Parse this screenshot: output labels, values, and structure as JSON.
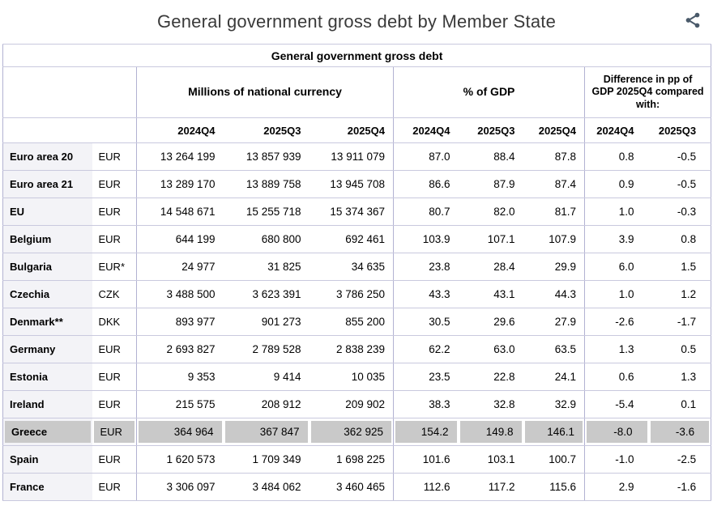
{
  "header": {
    "title": "General government gross debt by Member State"
  },
  "icons": {
    "share": "share-icon"
  },
  "colors": {
    "table_border": "#b2b2d2",
    "row_line": "#c9c9de",
    "name_column_bg": "#f3f3f7",
    "highlight_bg": "#c9c9c9",
    "title_text": "#3a3a3a",
    "share_icon": "#4a5a6a"
  },
  "chart_data": {
    "type": "table",
    "title": "General government gross debt",
    "column_groups": [
      {
        "label": "Millions of national currency",
        "span": 3
      },
      {
        "label": "% of GDP",
        "span": 3
      },
      {
        "label": "Difference in pp of GDP 2025Q4 compared with:",
        "span": 2
      }
    ],
    "quarter_columns": [
      "2024Q4",
      "2025Q3",
      "2025Q4",
      "2024Q4",
      "2025Q3",
      "2025Q4",
      "2024Q4",
      "2025Q3"
    ],
    "rows": [
      {
        "name": "Euro area 20",
        "currency": "EUR",
        "millions": [
          "13 264 199",
          "13 857 939",
          "13 911 079"
        ],
        "pct_of_gdp": [
          "87.0",
          "88.4",
          "87.8"
        ],
        "diff_pp": [
          "0.8",
          "-0.5"
        ],
        "highlighted": false
      },
      {
        "name": "Euro area 21",
        "currency": "EUR",
        "millions": [
          "13 289 170",
          "13 889 758",
          "13 945 708"
        ],
        "pct_of_gdp": [
          "86.6",
          "87.9",
          "87.4"
        ],
        "diff_pp": [
          "0.9",
          "-0.5"
        ],
        "highlighted": false
      },
      {
        "name": "EU",
        "currency": "EUR",
        "millions": [
          "14 548 671",
          "15 255 718",
          "15 374 367"
        ],
        "pct_of_gdp": [
          "80.7",
          "82.0",
          "81.7"
        ],
        "diff_pp": [
          "1.0",
          "-0.3"
        ],
        "highlighted": false
      },
      {
        "name": "Belgium",
        "currency": "EUR",
        "millions": [
          "644 199",
          "680 800",
          "692 461"
        ],
        "pct_of_gdp": [
          "103.9",
          "107.1",
          "107.9"
        ],
        "diff_pp": [
          "3.9",
          "0.8"
        ],
        "highlighted": false
      },
      {
        "name": "Bulgaria",
        "currency": "EUR*",
        "millions": [
          "24 977",
          "31 825",
          "34 635"
        ],
        "pct_of_gdp": [
          "23.8",
          "28.4",
          "29.9"
        ],
        "diff_pp": [
          "6.0",
          "1.5"
        ],
        "highlighted": false
      },
      {
        "name": "Czechia",
        "currency": "CZK",
        "millions": [
          "3 488 500",
          "3 623 391",
          "3 786 250"
        ],
        "pct_of_gdp": [
          "43.3",
          "43.1",
          "44.3"
        ],
        "diff_pp": [
          "1.0",
          "1.2"
        ],
        "highlighted": false
      },
      {
        "name": "Denmark**",
        "currency": "DKK",
        "millions": [
          "893 977",
          "901 273",
          "855 200"
        ],
        "pct_of_gdp": [
          "30.5",
          "29.6",
          "27.9"
        ],
        "diff_pp": [
          "-2.6",
          "-1.7"
        ],
        "highlighted": false
      },
      {
        "name": "Germany",
        "currency": "EUR",
        "millions": [
          "2 693 827",
          "2 789 528",
          "2 838 239"
        ],
        "pct_of_gdp": [
          "62.2",
          "63.0",
          "63.5"
        ],
        "diff_pp": [
          "1.3",
          "0.5"
        ],
        "highlighted": false
      },
      {
        "name": "Estonia",
        "currency": "EUR",
        "millions": [
          "9 353",
          "9 414",
          "10 035"
        ],
        "pct_of_gdp": [
          "23.5",
          "22.8",
          "24.1"
        ],
        "diff_pp": [
          "0.6",
          "1.3"
        ],
        "highlighted": false
      },
      {
        "name": "Ireland",
        "currency": "EUR",
        "millions": [
          "215 575",
          "208 912",
          "209 902"
        ],
        "pct_of_gdp": [
          "38.3",
          "32.8",
          "32.9"
        ],
        "diff_pp": [
          "-5.4",
          "0.1"
        ],
        "highlighted": false
      },
      {
        "name": "Greece",
        "currency": "EUR",
        "millions": [
          "364 964",
          "367 847",
          "362 925"
        ],
        "pct_of_gdp": [
          "154.2",
          "149.8",
          "146.1"
        ],
        "diff_pp": [
          "-8.0",
          "-3.6"
        ],
        "highlighted": true
      },
      {
        "name": "Spain",
        "currency": "EUR",
        "millions": [
          "1 620 573",
          "1 709 349",
          "1 698 225"
        ],
        "pct_of_gdp": [
          "101.6",
          "103.1",
          "100.7"
        ],
        "diff_pp": [
          "-1.0",
          "-2.5"
        ],
        "highlighted": false
      },
      {
        "name": "France",
        "currency": "EUR",
        "millions": [
          "3 306 097",
          "3 484 062",
          "3 460 465"
        ],
        "pct_of_gdp": [
          "112.6",
          "117.2",
          "115.6"
        ],
        "diff_pp": [
          "2.9",
          "-1.6"
        ],
        "highlighted": false
      }
    ]
  }
}
